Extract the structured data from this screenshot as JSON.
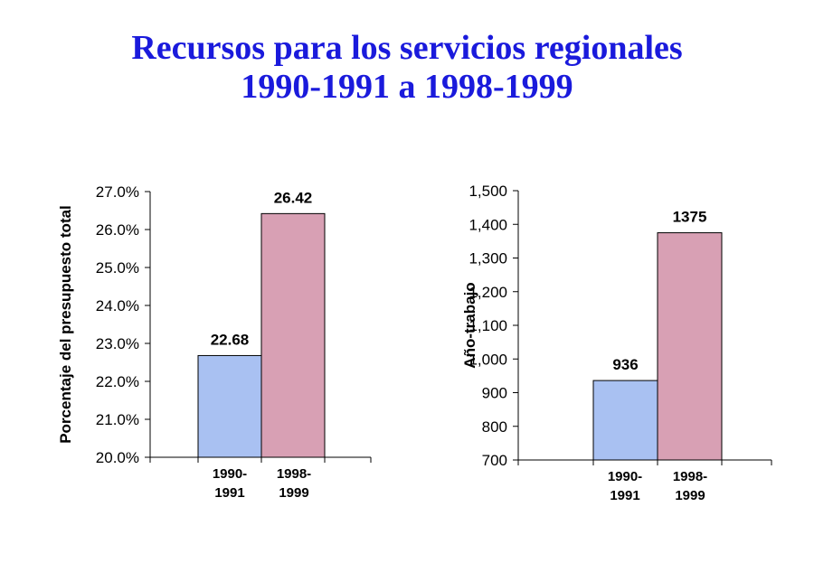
{
  "title": {
    "line1": "Recursos para los servicios regionales",
    "line2": "1990-1991 a 1998-1999"
  },
  "colors": {
    "title": "#1a1adc",
    "series_1990": "#a9c1f2",
    "series_1998": "#d8a0b4"
  },
  "chart_data": [
    {
      "type": "bar",
      "categories": [
        [
          "1990-",
          "1991"
        ],
        [
          "1998-",
          "1999"
        ]
      ],
      "values": [
        22.68,
        26.42
      ],
      "data_labels": [
        "22.68",
        "26.42"
      ],
      "ylabel": "Porcentaje del presupuesto total",
      "ylim": [
        20,
        27
      ],
      "yticks": [
        20,
        21,
        22,
        23,
        24,
        25,
        26,
        27
      ],
      "ytick_labels": [
        "20.0%",
        "21.0%",
        "22.0%",
        "23.0%",
        "24.0%",
        "25.0%",
        "26.0%",
        "27.0%"
      ],
      "grid": false
    },
    {
      "type": "bar",
      "categories": [
        [
          "1990-",
          "1991"
        ],
        [
          "1998-",
          "1999"
        ]
      ],
      "values": [
        936,
        1375
      ],
      "data_labels": [
        "936",
        "1375"
      ],
      "ylabel": "Año-trabajo",
      "ylim": [
        700,
        1500
      ],
      "yticks": [
        700,
        800,
        900,
        1000,
        1100,
        1200,
        1300,
        1400,
        1500
      ],
      "ytick_labels": [
        "700",
        "800",
        "900",
        "1,000",
        "1,100",
        "1,200",
        "1,300",
        "1,400",
        "1,500"
      ],
      "grid": false
    }
  ]
}
